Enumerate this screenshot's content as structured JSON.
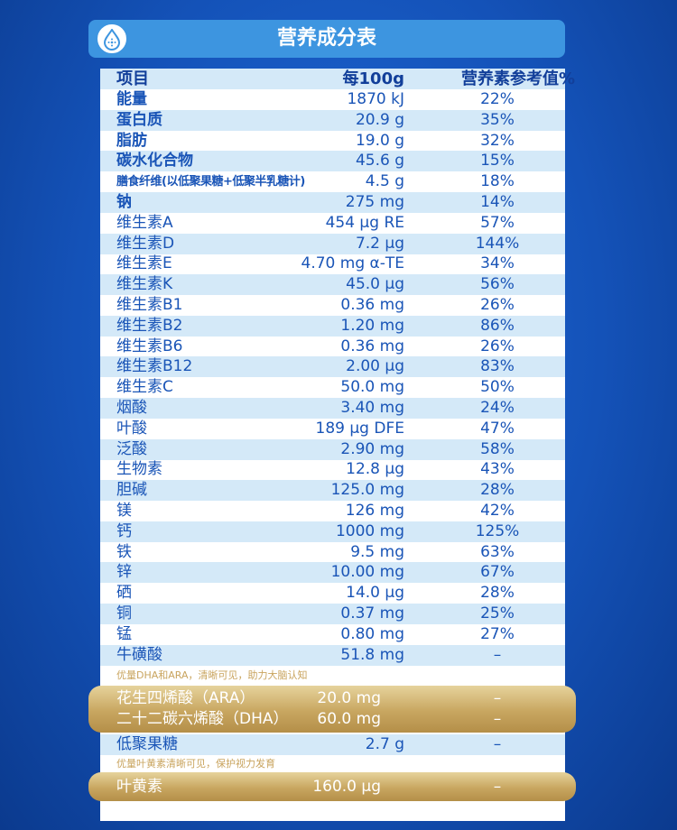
{
  "title": "营养成分表",
  "header_row": {
    "item": "项目",
    "per100": "每100g",
    "nrv": "营养素参考值%"
  },
  "rows": [
    {
      "item": "能量",
      "per100": "1870 kJ",
      "nrv": "22%"
    },
    {
      "item": "蛋白质",
      "per100": "20.9 g",
      "nrv": "35%"
    },
    {
      "item": "脂肪",
      "per100": "19.0 g",
      "nrv": "32%"
    },
    {
      "item": "碳水化合物",
      "per100": "45.6 g",
      "nrv": "15%"
    },
    {
      "item": "膳食纤维(以低聚果糖+低聚半乳糖计)",
      "per100": "4.5 g",
      "nrv": "18%"
    },
    {
      "item": "钠",
      "per100": "275 mg",
      "nrv": "14%"
    },
    {
      "item": "维生素A",
      "per100": "454 μg RE",
      "nrv": "57%"
    },
    {
      "item": "维生素D",
      "per100": "7.2 μg",
      "nrv": "144%"
    },
    {
      "item": "维生素E",
      "per100": "4.70 mg α-TE",
      "nrv": "34%"
    },
    {
      "item": "维生素K",
      "per100": "45.0 μg",
      "nrv": "56%"
    },
    {
      "item": "维生素B1",
      "per100": "0.36 mg",
      "nrv": "26%"
    },
    {
      "item": "维生素B2",
      "per100": "1.20 mg",
      "nrv": "86%"
    },
    {
      "item": "维生素B6",
      "per100": "0.36 mg",
      "nrv": "26%"
    },
    {
      "item": "维生素B12",
      "per100": "2.00 μg",
      "nrv": "83%"
    },
    {
      "item": "维生素C",
      "per100": "50.0 mg",
      "nrv": "50%"
    },
    {
      "item": "烟酸",
      "per100": "3.40 mg",
      "nrv": "24%"
    },
    {
      "item": "叶酸",
      "per100": "189 μg DFE",
      "nrv": "47%"
    },
    {
      "item": "泛酸",
      "per100": "2.90 mg",
      "nrv": "58%"
    },
    {
      "item": "生物素",
      "per100": "12.8 μg",
      "nrv": "43%"
    },
    {
      "item": "胆碱",
      "per100": "125.0 mg",
      "nrv": "28%"
    },
    {
      "item": "镁",
      "per100": "126 mg",
      "nrv": "42%"
    },
    {
      "item": "钙",
      "per100": "1000 mg",
      "nrv": "125%"
    },
    {
      "item": "铁",
      "per100": "9.5 mg",
      "nrv": "63%"
    },
    {
      "item": "锌",
      "per100": "10.00 mg",
      "nrv": "67%"
    },
    {
      "item": "硒",
      "per100": "14.0 μg",
      "nrv": "28%"
    },
    {
      "item": "铜",
      "per100": "0.37 mg",
      "nrv": "25%"
    },
    {
      "item": "锰",
      "per100": "0.80 mg",
      "nrv": "27%"
    },
    {
      "item": "牛磺酸",
      "per100": "51.8 mg",
      "nrv": "–"
    }
  ],
  "note1": "优量DHA和ARA，清晰可见，助力大脑认知",
  "highlight1": [
    {
      "item": "花生四烯酸（ARA）",
      "per100": "20.0 mg",
      "nrv": "–"
    },
    {
      "item": "二十二碳六烯酸（DHA）",
      "per100": "60.0 mg",
      "nrv": "–"
    }
  ],
  "oligo": {
    "item": "低聚果糖",
    "per100": "2.7 g",
    "nrv": "–"
  },
  "note2": "优量叶黄素清晰可见，保护视力发育",
  "highlight2": {
    "item": "叶黄素",
    "per100": "160.0 μg",
    "nrv": "–"
  },
  "colors": {
    "accent": "#3d95e0",
    "text": "#1a55b7",
    "stripe": "#d4e9f8",
    "gold": "#c8a660",
    "background": "#1452b8"
  },
  "icon": "water-drop-icon"
}
